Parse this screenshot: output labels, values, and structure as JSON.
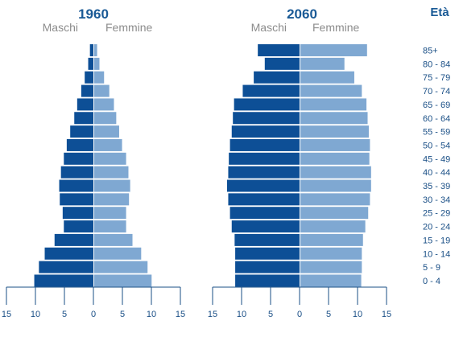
{
  "chart_data": [
    {
      "type": "bar",
      "orientation": "horizontal",
      "title": "1960",
      "categories": [
        "85+",
        "80 - 84",
        "75 - 79",
        "70 - 74",
        "65 - 69",
        "60 - 64",
        "55 - 59",
        "50 - 54",
        "45 - 49",
        "40 - 44",
        "35 - 39",
        "30 - 34",
        "25 - 29",
        "20 - 24",
        "15 - 19",
        "10 - 14",
        "5 - 9",
        "0 - 4"
      ],
      "series": [
        {
          "name": "Maschi",
          "color": "#0d4f96",
          "values": [
            0.6,
            0.9,
            1.5,
            2.1,
            2.8,
            3.3,
            4.0,
            4.6,
            5.1,
            5.6,
            5.9,
            5.8,
            5.3,
            5.1,
            6.7,
            8.4,
            9.4,
            10.2
          ]
        },
        {
          "name": "Femmine",
          "color": "#7fa8d2",
          "values": [
            0.5,
            0.9,
            1.7,
            2.6,
            3.4,
            3.8,
            4.3,
            4.8,
            5.5,
            5.9,
            6.2,
            6.0,
            5.5,
            5.5,
            6.6,
            8.1,
            9.2,
            9.9
          ]
        }
      ],
      "xlim": [
        -15,
        15
      ],
      "xticks": [
        "15",
        "10",
        "5",
        "0",
        "5",
        "10",
        "15"
      ]
    },
    {
      "type": "bar",
      "orientation": "horizontal",
      "title": "2060",
      "categories": [
        "85+",
        "80 - 84",
        "75 - 79",
        "70 - 74",
        "65 - 69",
        "60 - 64",
        "55 - 59",
        "50 - 54",
        "45 - 49",
        "40 - 44",
        "35 - 39",
        "30 - 34",
        "25 - 29",
        "20 - 24",
        "15 - 19",
        "10 - 14",
        "5 - 9",
        "0 - 4"
      ],
      "series": [
        {
          "name": "Maschi",
          "color": "#0d4f96",
          "values": [
            7.2,
            6.0,
            7.9,
            9.8,
            11.3,
            11.5,
            11.7,
            12.0,
            12.2,
            12.3,
            12.5,
            12.3,
            12.0,
            11.7,
            11.2,
            11.1,
            11.1,
            11.1
          ]
        },
        {
          "name": "Femmine",
          "color": "#7fa8d2",
          "values": [
            11.5,
            7.6,
            9.3,
            10.6,
            11.4,
            11.6,
            11.8,
            12.0,
            11.9,
            12.2,
            12.2,
            12.0,
            11.7,
            11.2,
            10.8,
            10.6,
            10.6,
            10.5
          ]
        }
      ],
      "xlim": [
        -15,
        15
      ],
      "xticks": [
        "15",
        "10",
        "5",
        "0",
        "5",
        "10",
        "15"
      ]
    }
  ],
  "age_header": "Età",
  "labels": {
    "male": "Maschi",
    "female": "Femmine"
  }
}
